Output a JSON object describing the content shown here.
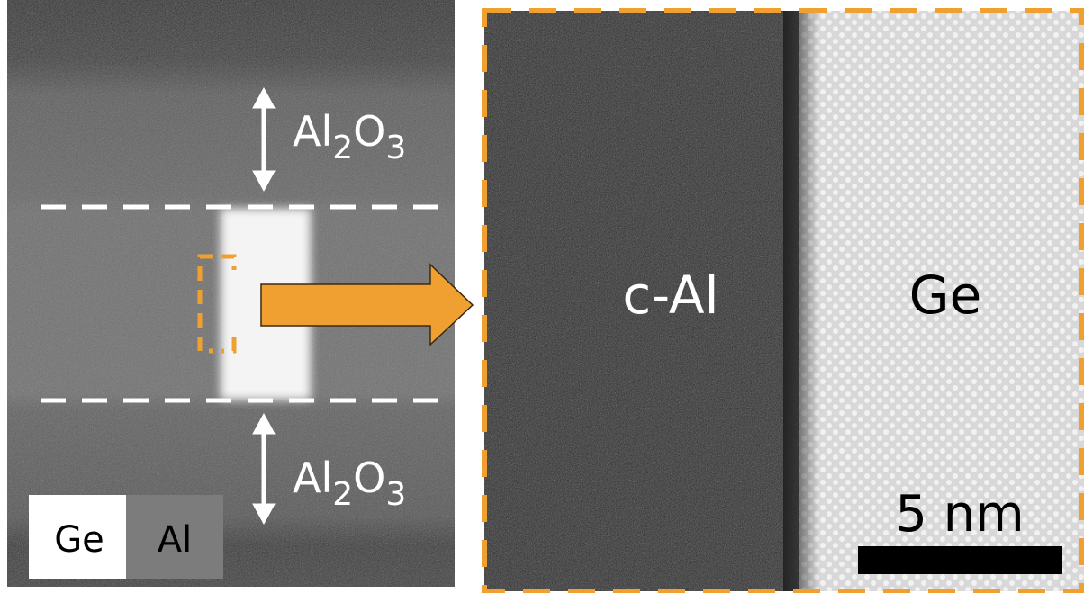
{
  "left_panel": {
    "top_oxide": [
      "Al",
      "2",
      "O",
      "3"
    ],
    "bottom_oxide": [
      "Al",
      "2",
      "O",
      "3"
    ],
    "legend": [
      "Ge",
      "Al"
    ]
  },
  "right_panel": {
    "left_label": "c-Al",
    "right_label": "Ge",
    "scale_bar": "5 nm"
  }
}
